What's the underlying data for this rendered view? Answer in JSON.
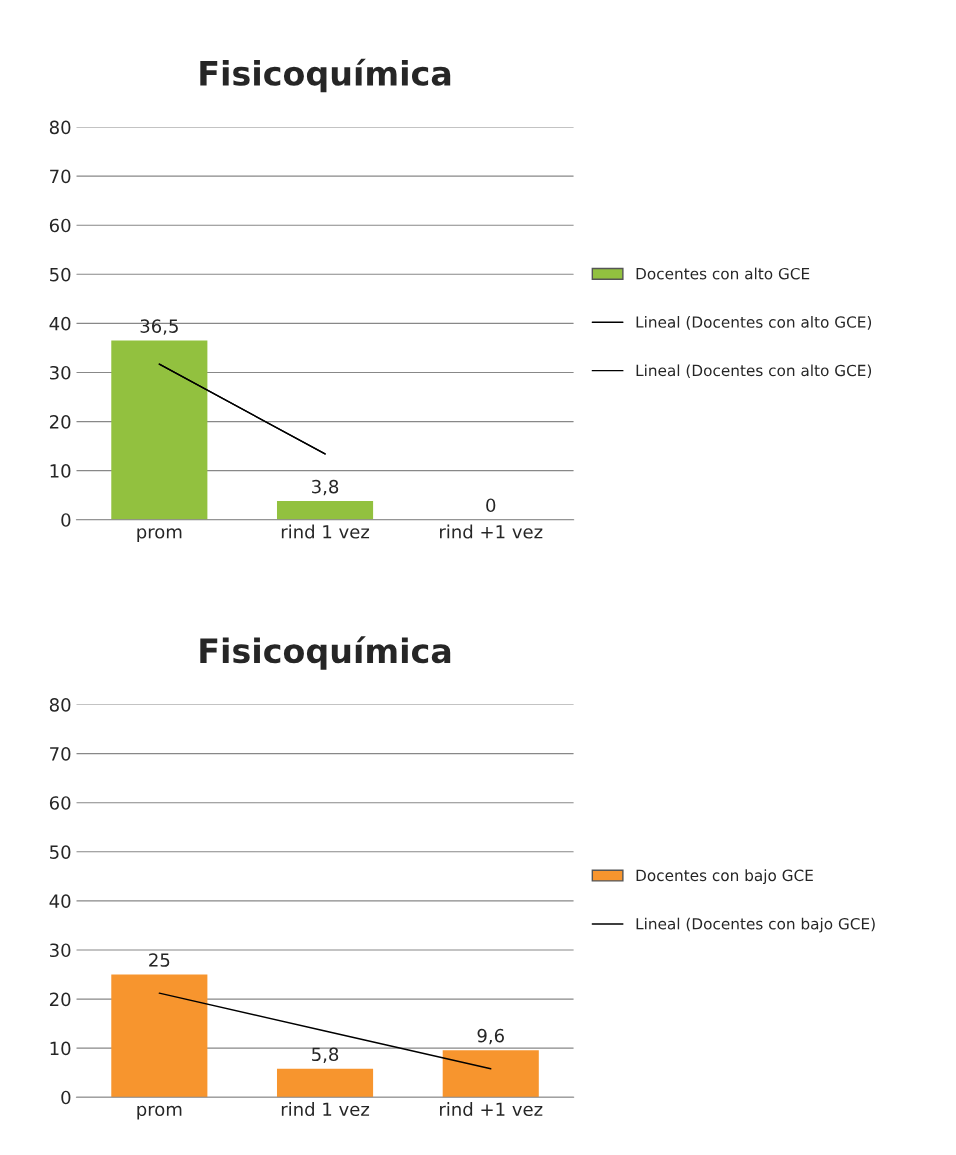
{
  "chart_data": [
    {
      "type": "bar",
      "title": "Fisicoquímica",
      "categories": [
        "prom",
        "rind 1 vez",
        "rind +1 vez"
      ],
      "ylim": [
        0,
        80
      ],
      "yticks": [
        0,
        10,
        20,
        30,
        40,
        50,
        60,
        70,
        80
      ],
      "grid": "y",
      "legend": "right",
      "series": [
        {
          "name": "Docentes con alto GCE",
          "color": "#92c13f",
          "values": [
            36.5,
            3.8,
            0
          ],
          "value_labels": [
            "36,5",
            "3,8",
            "0"
          ]
        },
        {
          "type": "line",
          "name": "Lineal (Docentes con alto GCE)",
          "color": "#000000",
          "values": [
            31.7,
            13.4,
            null
          ]
        },
        {
          "type": "line",
          "name": "Lineal (Docentes con alto GCE)",
          "color": "#000000",
          "values": [
            31.7,
            13.4,
            null
          ]
        }
      ]
    },
    {
      "type": "bar",
      "title": "Fisicoquímica",
      "categories": [
        "prom",
        "rind 1 vez",
        "rind +1 vez"
      ],
      "ylim": [
        0,
        80
      ],
      "yticks": [
        0,
        10,
        20,
        30,
        40,
        50,
        60,
        70,
        80
      ],
      "grid": "y",
      "legend": "right",
      "series": [
        {
          "name": "Docentes con bajo GCE",
          "color": "#f7952e",
          "values": [
            25,
            5.8,
            9.6
          ],
          "value_labels": [
            "25",
            "5,8",
            "9,6"
          ]
        },
        {
          "type": "line",
          "name": "Lineal (Docentes con bajo GCE)",
          "color": "#000000",
          "values": [
            21.2,
            13.5,
            5.8
          ]
        }
      ]
    }
  ]
}
